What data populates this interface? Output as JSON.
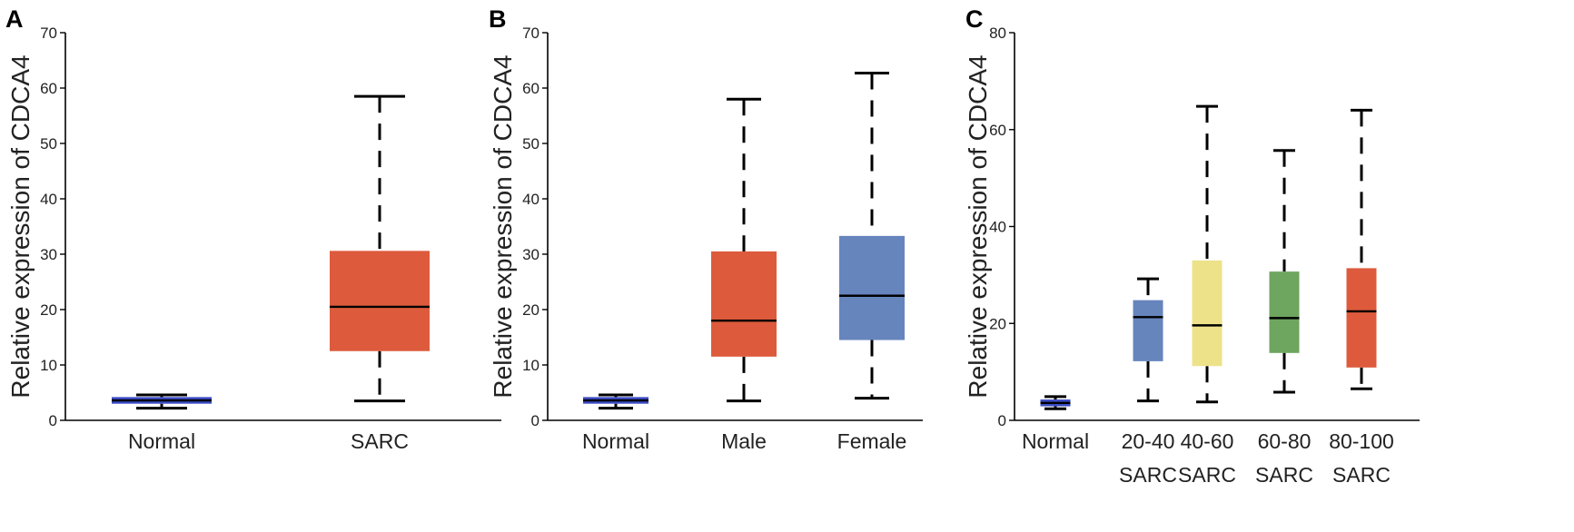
{
  "chart_data": [
    {
      "panel": "A",
      "type": "box",
      "ylabel": "Relative expression of CDCA4",
      "ylim": [
        0,
        70
      ],
      "yticks": [
        0,
        10,
        20,
        30,
        40,
        50,
        60,
        70
      ],
      "ytick_labels": [
        "0",
        "10",
        "20",
        "30",
        "40",
        "50",
        "60",
        "70"
      ],
      "series": [
        {
          "name": "Normal",
          "label_lines": [
            "Normal"
          ],
          "color": "#3b4bc4",
          "min": 2.2,
          "q1": 3.0,
          "median": 3.6,
          "q3": 4.2,
          "max": 4.6
        },
        {
          "name": "SARC",
          "label_lines": [
            "SARC"
          ],
          "color": "#dd5b3c",
          "min": 3.5,
          "q1": 12.5,
          "median": 20.5,
          "q3": 30.6,
          "max": 58.5
        }
      ]
    },
    {
      "panel": "B",
      "type": "box",
      "ylabel": "Relative expression of CDCA4",
      "ylim": [
        0,
        70
      ],
      "yticks": [
        0,
        10,
        20,
        30,
        40,
        50,
        60,
        70
      ],
      "ytick_labels": [
        "0",
        "10",
        "20",
        "30",
        "40",
        "50",
        "60",
        "70"
      ],
      "series": [
        {
          "name": "Normal",
          "label_lines": [
            "Normal"
          ],
          "color": "#3b4bc4",
          "min": 2.2,
          "q1": 3.0,
          "median": 3.6,
          "q3": 4.2,
          "max": 4.6
        },
        {
          "name": "Male",
          "label_lines": [
            "Male"
          ],
          "color": "#dd5b3c",
          "min": 3.5,
          "q1": 11.5,
          "median": 18.0,
          "q3": 30.5,
          "max": 58.0
        },
        {
          "name": "Female",
          "label_lines": [
            "Female"
          ],
          "color": "#6685bd",
          "min": 4.0,
          "q1": 14.5,
          "median": 22.5,
          "q3": 33.3,
          "max": 62.7
        }
      ]
    },
    {
      "panel": "C",
      "type": "box",
      "ylabel": "Relative expression of CDCA4",
      "ylim": [
        0,
        80
      ],
      "yticks": [
        0,
        20,
        40,
        60,
        80
      ],
      "ytick_labels": [
        "0",
        "20",
        "40",
        "60",
        "80"
      ],
      "series": [
        {
          "name": "Normal",
          "label_lines": [
            "Normal"
          ],
          "color": "#3b4bc4",
          "min": 2.4,
          "q1": 2.9,
          "median": 3.6,
          "q3": 4.3,
          "max": 4.9
        },
        {
          "name": "20-40 SARC",
          "label_lines": [
            "20-40",
            "SARC"
          ],
          "color": "#6685bd",
          "min": 4.0,
          "q1": 12.2,
          "median": 21.3,
          "q3": 24.8,
          "max": 29.2
        },
        {
          "name": "40-60 SARC",
          "label_lines": [
            "40-60",
            "SARC"
          ],
          "color": "#ede28a",
          "min": 3.8,
          "q1": 11.2,
          "median": 19.6,
          "q3": 33.0,
          "max": 64.8
        },
        {
          "name": "60-80 SARC",
          "label_lines": [
            "60-80",
            "SARC"
          ],
          "color": "#6ea55f",
          "min": 5.8,
          "q1": 13.9,
          "median": 21.1,
          "q3": 30.7,
          "max": 55.7
        },
        {
          "name": "80-100 SARC",
          "label_lines": [
            "80-100",
            "SARC"
          ],
          "color": "#dd5b3c",
          "min": 6.5,
          "q1": 10.9,
          "median": 22.5,
          "q3": 31.4,
          "max": 64.0
        }
      ]
    }
  ]
}
